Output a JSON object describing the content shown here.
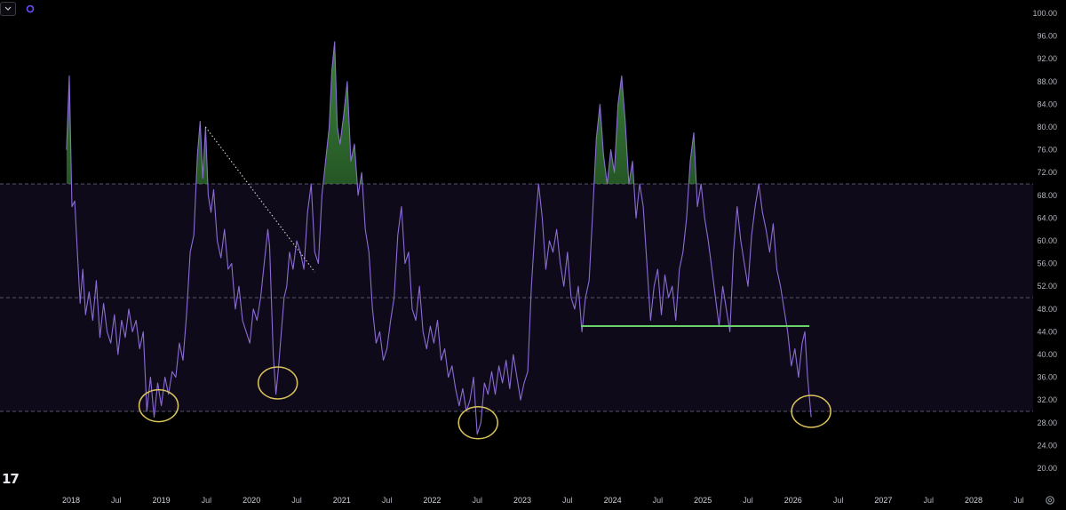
{
  "toolbar": {
    "dropdown_icon": "chevron-down-icon",
    "sync_icon": "refresh-icon"
  },
  "logo": {
    "text": "17"
  },
  "colors": {
    "background": "#000000",
    "band_fill": "#0f0a1a",
    "line": "#8b6cd6",
    "overbought_fill": "#3c8a3c",
    "support_line": "#6bd16b",
    "circle": "#d9c25a",
    "dashed": "#55556a"
  },
  "chart_data": {
    "type": "line",
    "title": "",
    "xlabel": "",
    "ylabel": "",
    "ylim": [
      16,
      100
    ],
    "yticks": [
      "100.00",
      "96.00",
      "92.00",
      "88.00",
      "84.00",
      "80.00",
      "76.00",
      "72.00",
      "68.00",
      "64.00",
      "60.00",
      "56.00",
      "52.00",
      "48.00",
      "44.00",
      "40.00",
      "36.00",
      "32.00",
      "28.00",
      "24.00",
      "20.00"
    ],
    "xticks": [
      "2018",
      "Jul",
      "2019",
      "Jul",
      "2020",
      "Jul",
      "2021",
      "Jul",
      "2022",
      "Jul",
      "2023",
      "Jul",
      "2024",
      "Jul",
      "2025",
      "Jul",
      "2026",
      "Jul",
      "2027",
      "Jul",
      "2028",
      "Jul"
    ],
    "x_range": [
      2017.8,
      2028.2
    ],
    "reference_lines": [
      70,
      50,
      30
    ],
    "band": [
      30,
      70
    ],
    "series": [
      {
        "points": [
          [
            2017.95,
            76
          ],
          [
            2017.98,
            89
          ],
          [
            2018.01,
            66
          ],
          [
            2018.04,
            67
          ],
          [
            2018.07,
            58
          ],
          [
            2018.1,
            49
          ],
          [
            2018.13,
            55
          ],
          [
            2018.16,
            47
          ],
          [
            2018.2,
            51
          ],
          [
            2018.24,
            46
          ],
          [
            2018.28,
            53
          ],
          [
            2018.32,
            43
          ],
          [
            2018.36,
            49
          ],
          [
            2018.4,
            44
          ],
          [
            2018.44,
            42
          ],
          [
            2018.48,
            47
          ],
          [
            2018.52,
            40
          ],
          [
            2018.56,
            46
          ],
          [
            2018.6,
            43
          ],
          [
            2018.64,
            48
          ],
          [
            2018.68,
            44
          ],
          [
            2018.72,
            46
          ],
          [
            2018.76,
            41
          ],
          [
            2018.8,
            44
          ],
          [
            2018.84,
            30
          ],
          [
            2018.88,
            36
          ],
          [
            2018.92,
            29
          ],
          [
            2018.96,
            35
          ],
          [
            2019.0,
            31
          ],
          [
            2019.04,
            36
          ],
          [
            2019.08,
            33
          ],
          [
            2019.12,
            37
          ],
          [
            2019.16,
            36
          ],
          [
            2019.2,
            42
          ],
          [
            2019.24,
            39
          ],
          [
            2019.28,
            47
          ],
          [
            2019.32,
            58
          ],
          [
            2019.36,
            61
          ],
          [
            2019.4,
            75
          ],
          [
            2019.43,
            81
          ],
          [
            2019.46,
            71
          ],
          [
            2019.49,
            80
          ],
          [
            2019.52,
            68
          ],
          [
            2019.55,
            65
          ],
          [
            2019.58,
            69
          ],
          [
            2019.62,
            60
          ],
          [
            2019.66,
            57
          ],
          [
            2019.7,
            62
          ],
          [
            2019.74,
            55
          ],
          [
            2019.78,
            56
          ],
          [
            2019.82,
            48
          ],
          [
            2019.86,
            52
          ],
          [
            2019.9,
            46
          ],
          [
            2019.94,
            44
          ],
          [
            2019.98,
            42
          ],
          [
            2020.02,
            48
          ],
          [
            2020.06,
            46
          ],
          [
            2020.1,
            50
          ],
          [
            2020.14,
            56
          ],
          [
            2020.18,
            62
          ],
          [
            2020.2,
            59
          ],
          [
            2020.24,
            40
          ],
          [
            2020.27,
            33
          ],
          [
            2020.3,
            38
          ],
          [
            2020.33,
            44
          ],
          [
            2020.36,
            50
          ],
          [
            2020.39,
            52
          ],
          [
            2020.42,
            58
          ],
          [
            2020.46,
            55
          ],
          [
            2020.5,
            60
          ],
          [
            2020.54,
            58
          ],
          [
            2020.58,
            55
          ],
          [
            2020.62,
            65
          ],
          [
            2020.66,
            70
          ],
          [
            2020.7,
            58
          ],
          [
            2020.74,
            56
          ],
          [
            2020.78,
            68
          ],
          [
            2020.82,
            74
          ],
          [
            2020.86,
            80
          ],
          [
            2020.89,
            90
          ],
          [
            2020.92,
            95
          ],
          [
            2020.95,
            80
          ],
          [
            2020.98,
            77
          ],
          [
            2021.02,
            82
          ],
          [
            2021.06,
            88
          ],
          [
            2021.1,
            74
          ],
          [
            2021.14,
            77
          ],
          [
            2021.18,
            68
          ],
          [
            2021.22,
            72
          ],
          [
            2021.26,
            62
          ],
          [
            2021.3,
            58
          ],
          [
            2021.34,
            48
          ],
          [
            2021.38,
            42
          ],
          [
            2021.42,
            44
          ],
          [
            2021.46,
            39
          ],
          [
            2021.5,
            41
          ],
          [
            2021.54,
            46
          ],
          [
            2021.58,
            50
          ],
          [
            2021.62,
            61
          ],
          [
            2021.66,
            66
          ],
          [
            2021.7,
            56
          ],
          [
            2021.74,
            58
          ],
          [
            2021.78,
            48
          ],
          [
            2021.82,
            46
          ],
          [
            2021.86,
            52
          ],
          [
            2021.9,
            44
          ],
          [
            2021.94,
            41
          ],
          [
            2021.98,
            45
          ],
          [
            2022.02,
            42
          ],
          [
            2022.06,
            46
          ],
          [
            2022.1,
            39
          ],
          [
            2022.14,
            41
          ],
          [
            2022.18,
            36
          ],
          [
            2022.22,
            38
          ],
          [
            2022.26,
            34
          ],
          [
            2022.3,
            31
          ],
          [
            2022.34,
            34
          ],
          [
            2022.38,
            30
          ],
          [
            2022.42,
            32
          ],
          [
            2022.46,
            36
          ],
          [
            2022.5,
            26
          ],
          [
            2022.54,
            28
          ],
          [
            2022.58,
            35
          ],
          [
            2022.62,
            33
          ],
          [
            2022.66,
            37
          ],
          [
            2022.7,
            33
          ],
          [
            2022.74,
            38
          ],
          [
            2022.78,
            35
          ],
          [
            2022.82,
            39
          ],
          [
            2022.86,
            34
          ],
          [
            2022.9,
            40
          ],
          [
            2022.94,
            36
          ],
          [
            2022.98,
            32
          ],
          [
            2023.02,
            35
          ],
          [
            2023.06,
            37
          ],
          [
            2023.1,
            52
          ],
          [
            2023.14,
            62
          ],
          [
            2023.18,
            70
          ],
          [
            2023.22,
            64
          ],
          [
            2023.26,
            55
          ],
          [
            2023.3,
            60
          ],
          [
            2023.34,
            58
          ],
          [
            2023.38,
            62
          ],
          [
            2023.42,
            56
          ],
          [
            2023.46,
            52
          ],
          [
            2023.5,
            58
          ],
          [
            2023.54,
            50
          ],
          [
            2023.58,
            48
          ],
          [
            2023.62,
            52
          ],
          [
            2023.66,
            44
          ],
          [
            2023.7,
            50
          ],
          [
            2023.74,
            53
          ],
          [
            2023.78,
            65
          ],
          [
            2023.82,
            78
          ],
          [
            2023.86,
            84
          ],
          [
            2023.9,
            75
          ],
          [
            2023.94,
            70
          ],
          [
            2023.98,
            76
          ],
          [
            2024.02,
            72
          ],
          [
            2024.06,
            84
          ],
          [
            2024.1,
            89
          ],
          [
            2024.14,
            81
          ],
          [
            2024.18,
            70
          ],
          [
            2024.22,
            74
          ],
          [
            2024.26,
            64
          ],
          [
            2024.3,
            70
          ],
          [
            2024.34,
            66
          ],
          [
            2024.38,
            56
          ],
          [
            2024.42,
            46
          ],
          [
            2024.46,
            52
          ],
          [
            2024.5,
            55
          ],
          [
            2024.54,
            47
          ],
          [
            2024.58,
            54
          ],
          [
            2024.62,
            50
          ],
          [
            2024.66,
            52
          ],
          [
            2024.7,
            46
          ],
          [
            2024.74,
            55
          ],
          [
            2024.78,
            58
          ],
          [
            2024.82,
            64
          ],
          [
            2024.86,
            74
          ],
          [
            2024.9,
            79
          ],
          [
            2024.94,
            66
          ],
          [
            2024.98,
            70
          ],
          [
            2025.02,
            64
          ],
          [
            2025.06,
            60
          ],
          [
            2025.1,
            55
          ],
          [
            2025.14,
            50
          ],
          [
            2025.18,
            45
          ],
          [
            2025.22,
            52
          ],
          [
            2025.26,
            48
          ],
          [
            2025.3,
            44
          ],
          [
            2025.34,
            58
          ],
          [
            2025.38,
            66
          ],
          [
            2025.42,
            60
          ],
          [
            2025.46,
            56
          ],
          [
            2025.5,
            52
          ],
          [
            2025.54,
            61
          ],
          [
            2025.58,
            66
          ],
          [
            2025.62,
            70
          ],
          [
            2025.66,
            65
          ],
          [
            2025.7,
            62
          ],
          [
            2025.74,
            58
          ],
          [
            2025.78,
            63
          ],
          [
            2025.82,
            55
          ],
          [
            2025.86,
            52
          ],
          [
            2025.9,
            48
          ],
          [
            2025.94,
            44
          ],
          [
            2025.98,
            38
          ],
          [
            2026.02,
            41
          ],
          [
            2026.06,
            36
          ],
          [
            2026.1,
            42
          ],
          [
            2026.13,
            44
          ],
          [
            2026.16,
            36
          ],
          [
            2026.2,
            29
          ]
        ]
      }
    ],
    "annotations": [
      {
        "type": "circle",
        "x": 2018.97,
        "y": 31
      },
      {
        "type": "circle",
        "x": 2020.29,
        "y": 35
      },
      {
        "type": "circle",
        "x": 2022.51,
        "y": 28
      },
      {
        "type": "circle",
        "x": 2026.2,
        "y": 30
      },
      {
        "type": "dotted-trendline",
        "from": [
          2019.49,
          80
        ],
        "to": [
          2020.7,
          54.5
        ]
      },
      {
        "type": "support-line",
        "from": [
          2023.65,
          45
        ],
        "to": [
          2026.18,
          45
        ]
      }
    ]
  }
}
